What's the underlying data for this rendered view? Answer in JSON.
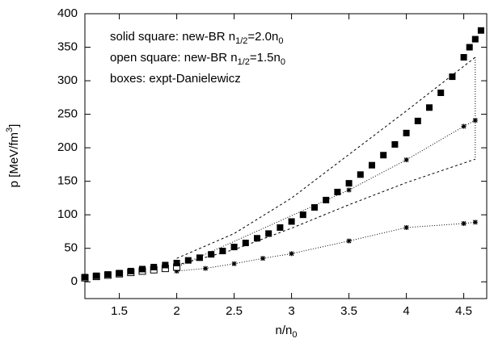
{
  "chart_data": {
    "type": "line",
    "xlim": [
      1.2,
      4.7
    ],
    "ylim": [
      -25,
      400
    ],
    "xticks": [
      1.5,
      2,
      2.5,
      3,
      3.5,
      4,
      4.5
    ],
    "yticks": [
      0,
      50,
      100,
      150,
      200,
      250,
      300,
      350,
      400
    ],
    "x_label": [
      "n/n",
      "0"
    ],
    "y_label": [
      "p  [MeV/fm",
      "3",
      "]"
    ],
    "annotations": [
      [
        "solid square: new-BR n",
        "1/2",
        "=2.0n",
        "0"
      ],
      [
        "open square: new-BR n",
        "1/2",
        "=1.5n",
        "0"
      ],
      [
        "boxes: expt-Danielewicz"
      ]
    ],
    "series": [
      {
        "style": "dashed",
        "color": "#000000",
        "x": [
          2,
          2.5,
          3,
          3.5,
          4,
          4.6
        ],
        "values": [
          35,
          72,
          125,
          190,
          255,
          335
        ]
      },
      {
        "style": "dashed",
        "color": "#000000",
        "x": [
          2,
          2.5,
          3,
          3.5,
          4,
          4.6
        ],
        "values": [
          25,
          48,
          80,
          115,
          148,
          183
        ]
      },
      {
        "style": "star",
        "color": "#000000",
        "x": [
          2,
          3.5,
          4,
          4.5,
          4.6
        ],
        "values": [
          22,
          137,
          182,
          232,
          241
        ]
      },
      {
        "style": "star",
        "color": "#000000",
        "x": [
          2,
          2.25,
          2.5,
          2.75,
          3,
          3.5,
          4,
          4.5,
          4.6
        ],
        "values": [
          16,
          20,
          27,
          35,
          42,
          61,
          81,
          87,
          89
        ]
      },
      {
        "style": "square-open",
        "color": "#000000",
        "x": [
          1.2,
          1.3,
          1.4,
          1.5,
          1.6,
          1.7,
          1.8,
          1.9,
          2.0
        ],
        "values": [
          6,
          8,
          10,
          12,
          14,
          16,
          18,
          20,
          22
        ]
      },
      {
        "style": "square-filled",
        "color": "#000000",
        "x": [
          1.2,
          1.3,
          1.4,
          1.5,
          1.6,
          1.7,
          1.8,
          1.9,
          2.0,
          2.1,
          2.2,
          2.3,
          2.4,
          2.5,
          2.6,
          2.7,
          2.8,
          2.9,
          3.0,
          3.1,
          3.2,
          3.3,
          3.4,
          3.5,
          3.6,
          3.7,
          3.8,
          3.9,
          4.0,
          4.1,
          4.2,
          4.3,
          4.4,
          4.5,
          4.55,
          4.6,
          4.65
        ],
        "values": [
          7,
          9,
          11,
          13,
          16,
          19,
          22,
          25,
          28,
          32,
          36,
          41,
          46,
          52,
          58,
          65,
          72,
          81,
          90,
          100,
          111,
          122,
          134,
          147,
          160,
          174,
          189,
          205,
          222,
          240,
          260,
          282,
          306,
          335,
          350,
          362,
          375
        ]
      }
    ]
  }
}
